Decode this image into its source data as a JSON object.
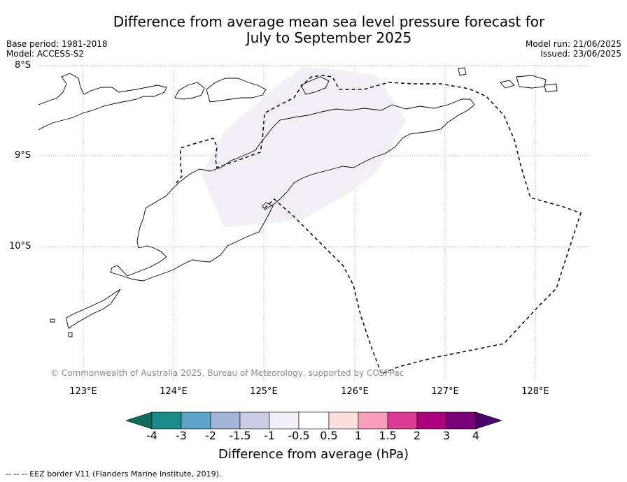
{
  "title_line1": "Difference from average mean sea level pressure forecast for",
  "title_line2": "July to September 2025",
  "meta": {
    "base_period": "Base period: 1981-2018",
    "model": "Model: ACCESS-S2",
    "model_run": "Model run: 21/06/2025",
    "issued": "Issued: 23/06/2025"
  },
  "latitude_labels": [
    "8°S",
    "9°S",
    "10°S"
  ],
  "longitude_labels": [
    "123°E",
    "124°E",
    "125°E",
    "126°E",
    "127°E",
    "128°E"
  ],
  "credit": "© Commonwealth of Australia 2025, Bureau of Meteorology, supported by COSPPac",
  "colorbar": {
    "label": "Difference from average (hPa)",
    "ticks": [
      "-4",
      "-3",
      "-2",
      "-1.5",
      "-1",
      "-0.5",
      "0.5",
      "1",
      "1.5",
      "2",
      "3",
      "4"
    ],
    "colors": [
      "#1a8a8a",
      "#5ba3c9",
      "#a3b4d8",
      "#cbcbe3",
      "#f2eff6",
      "#ffffff",
      "#fde0dd",
      "#f89ebb",
      "#dd3a96",
      "#ae017e",
      "#7a0177",
      "#49006a",
      "#0f6b5a"
    ]
  },
  "eez_note": "-- -- -- EEZ border V11 (Flanders Marine Institute, 2019).",
  "anomaly_region_value_hpa": "-1 to -0.5"
}
